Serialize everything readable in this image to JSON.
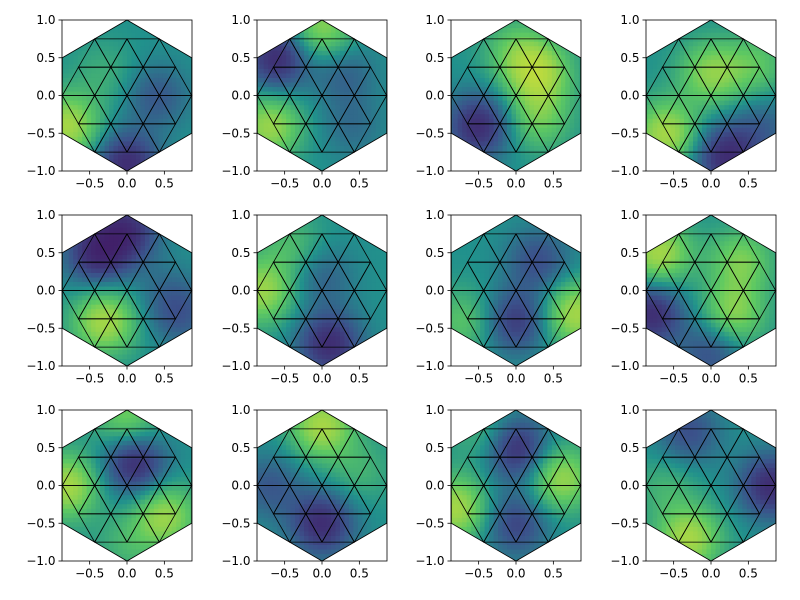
{
  "chart_data": {
    "type": "heatmap",
    "layout": {
      "rows": 3,
      "cols": 4
    },
    "colormap": "viridis",
    "colormap_stops": [
      "#440154",
      "#3b528b",
      "#21918c",
      "#5ec962",
      "#fde725"
    ],
    "mesh": "triangular mesh on a regular hexagon, circumradius 1, vertex at top",
    "xlim": [
      -0.87,
      0.87
    ],
    "ylim": [
      -1.0,
      1.0
    ],
    "xticks": [
      -0.5,
      0.0,
      0.5
    ],
    "yticks": [
      -1.0,
      -0.5,
      0.0,
      0.5,
      1.0
    ],
    "xtick_labels": [
      "−0.5",
      "0.0",
      "0.5"
    ],
    "ytick_labels": [
      "−1.0",
      "−0.5",
      "0.0",
      "0.5",
      "1.0"
    ],
    "panels": [
      {
        "row": 0,
        "col": 0,
        "hotspots": [
          {
            "x": -0.8,
            "y": -0.4,
            "v": 1.0
          },
          {
            "x": 0.0,
            "y": -0.9,
            "v": -1.0
          },
          {
            "x": 0.4,
            "y": 0.0,
            "v": -0.5
          },
          {
            "x": -0.3,
            "y": 0.3,
            "v": 0.25
          }
        ]
      },
      {
        "row": 0,
        "col": 1,
        "hotspots": [
          {
            "x": -0.6,
            "y": 0.5,
            "v": -1.0
          },
          {
            "x": 0.0,
            "y": 0.9,
            "v": 0.8
          },
          {
            "x": -0.7,
            "y": -0.4,
            "v": 0.9
          },
          {
            "x": 0.4,
            "y": -0.4,
            "v": -0.3
          },
          {
            "x": 0.3,
            "y": 0.3,
            "v": -0.4
          }
        ]
      },
      {
        "row": 0,
        "col": 2,
        "hotspots": [
          {
            "x": 0.3,
            "y": 0.3,
            "v": 1.0
          },
          {
            "x": 0.3,
            "y": -0.3,
            "v": 0.6
          },
          {
            "x": -0.5,
            "y": -0.4,
            "v": -1.0
          },
          {
            "x": 0.0,
            "y": 0.6,
            "v": 0.5
          }
        ]
      },
      {
        "row": 0,
        "col": 3,
        "hotspots": [
          {
            "x": -0.6,
            "y": -0.5,
            "v": 1.0
          },
          {
            "x": 0.2,
            "y": -0.8,
            "v": -1.0
          },
          {
            "x": 0.0,
            "y": 0.3,
            "v": 0.8
          },
          {
            "x": 0.6,
            "y": 0.4,
            "v": 0.5
          },
          {
            "x": 0.7,
            "y": -0.4,
            "v": -0.4
          }
        ]
      },
      {
        "row": 1,
        "col": 0,
        "hotspots": [
          {
            "x": -0.3,
            "y": -0.4,
            "v": 1.0
          },
          {
            "x": -0.4,
            "y": 0.5,
            "v": -1.0
          },
          {
            "x": 0.0,
            "y": 0.8,
            "v": -0.9
          },
          {
            "x": 0.5,
            "y": 0.0,
            "v": -0.2
          },
          {
            "x": 0.7,
            "y": -0.3,
            "v": -0.5
          }
        ]
      },
      {
        "row": 1,
        "col": 1,
        "hotspots": [
          {
            "x": -0.8,
            "y": 0.0,
            "v": 0.9
          },
          {
            "x": 0.1,
            "y": -0.7,
            "v": -1.0
          },
          {
            "x": 0.0,
            "y": 0.2,
            "v": -0.4
          },
          {
            "x": -0.4,
            "y": 0.6,
            "v": 0.4
          }
        ]
      },
      {
        "row": 1,
        "col": 2,
        "hotspots": [
          {
            "x": 0.8,
            "y": -0.3,
            "v": 1.0
          },
          {
            "x": 0.0,
            "y": -0.4,
            "v": -0.8
          },
          {
            "x": 0.3,
            "y": 0.4,
            "v": -0.6
          },
          {
            "x": -0.7,
            "y": -0.4,
            "v": 0.5
          }
        ]
      },
      {
        "row": 1,
        "col": 3,
        "hotspots": [
          {
            "x": -0.7,
            "y": 0.5,
            "v": 1.0
          },
          {
            "x": 0.3,
            "y": -0.3,
            "v": 0.8
          },
          {
            "x": 0.4,
            "y": 0.4,
            "v": 0.7
          },
          {
            "x": -0.8,
            "y": -0.3,
            "v": -1.0
          },
          {
            "x": 0.0,
            "y": -0.8,
            "v": -0.6
          }
        ]
      },
      {
        "row": 2,
        "col": 0,
        "hotspots": [
          {
            "x": 0.1,
            "y": 0.3,
            "v": -1.0
          },
          {
            "x": -0.8,
            "y": 0.0,
            "v": 1.0
          },
          {
            "x": 0.5,
            "y": -0.4,
            "v": 0.9
          },
          {
            "x": 0.0,
            "y": 0.9,
            "v": 0.7
          },
          {
            "x": 0.0,
            "y": -0.8,
            "v": 0.3
          }
        ]
      },
      {
        "row": 2,
        "col": 1,
        "hotspots": [
          {
            "x": 0.0,
            "y": 0.8,
            "v": 1.0
          },
          {
            "x": 0.0,
            "y": -0.5,
            "v": -1.0
          },
          {
            "x": -0.7,
            "y": 0.0,
            "v": -0.5
          },
          {
            "x": 0.5,
            "y": 0.2,
            "v": 0.3
          }
        ]
      },
      {
        "row": 2,
        "col": 2,
        "hotspots": [
          {
            "x": -0.8,
            "y": -0.3,
            "v": 1.0
          },
          {
            "x": 0.6,
            "y": 0.1,
            "v": 0.9
          },
          {
            "x": 0.0,
            "y": 0.5,
            "v": -1.0
          },
          {
            "x": 0.0,
            "y": -0.5,
            "v": -0.7
          },
          {
            "x": -0.4,
            "y": 0.7,
            "v": 0.4
          }
        ]
      },
      {
        "row": 2,
        "col": 3,
        "hotspots": [
          {
            "x": 0.8,
            "y": 0.0,
            "v": -1.0
          },
          {
            "x": -0.3,
            "y": -0.7,
            "v": 1.0
          },
          {
            "x": -0.3,
            "y": 0.7,
            "v": -0.6
          },
          {
            "x": -0.6,
            "y": 0.0,
            "v": 0.3
          }
        ]
      }
    ]
  }
}
